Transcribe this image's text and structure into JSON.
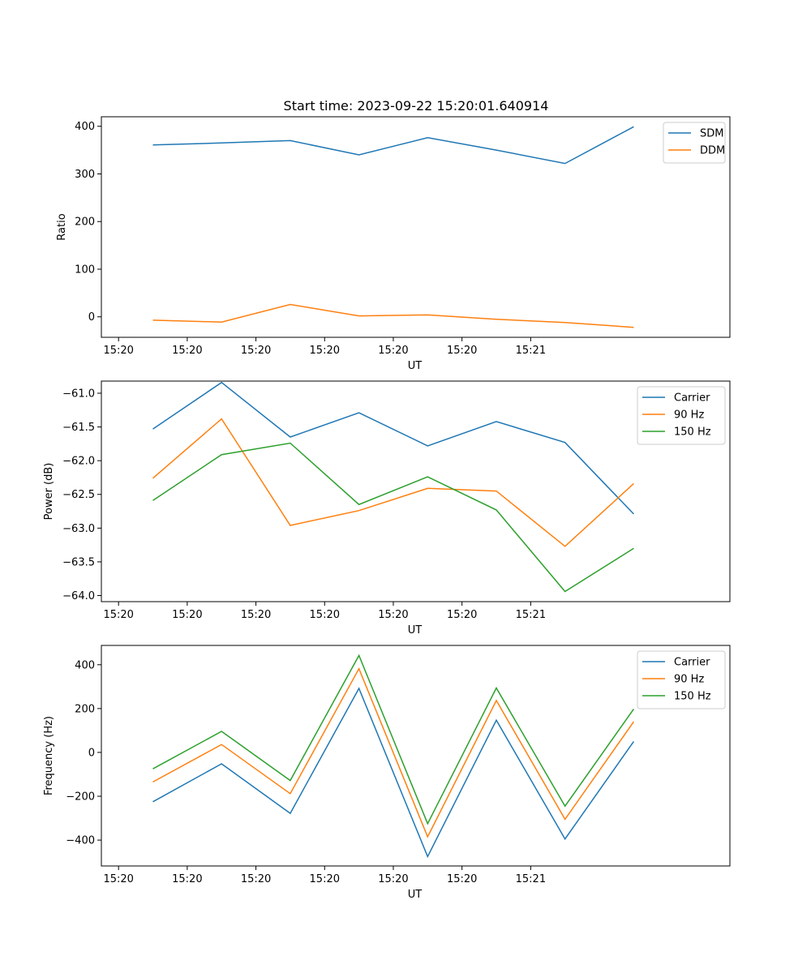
{
  "figure_title": "Start time: 2023-09-22 15:20:01.640914",
  "colors": {
    "blue": "#1f77b4",
    "orange": "#ff7f0e",
    "green": "#2ca02c"
  },
  "x_tick_labels": [
    "15:20",
    "15:20",
    "15:20",
    "15:20",
    "15:20",
    "15:20",
    "15:21"
  ],
  "chart_data": [
    {
      "type": "line",
      "title": "Start time: 2023-09-22 15:20:01.640914",
      "xlabel": "UT",
      "ylabel": "Ratio",
      "x": [
        1,
        2,
        3,
        4,
        5,
        6,
        7,
        8
      ],
      "xlim": [
        0.25,
        9.4
      ],
      "ylim": [
        -43,
        420
      ],
      "yticks": [
        0,
        100,
        200,
        300,
        400
      ],
      "legend_position": "top-right",
      "series": [
        {
          "name": "SDM",
          "color": "#1f77b4",
          "values": [
            361,
            365,
            370,
            340,
            376,
            350,
            322,
            399
          ]
        },
        {
          "name": "DDM",
          "color": "#ff7f0e",
          "values": [
            -7,
            -11,
            26,
            2,
            4,
            -5,
            -12,
            -22
          ]
        }
      ]
    },
    {
      "type": "line",
      "xlabel": "UT",
      "ylabel": "Power (dB)",
      "x": [
        1,
        2,
        3,
        4,
        5,
        6,
        7,
        8
      ],
      "xlim": [
        0.25,
        9.4
      ],
      "ylim": [
        -64.09,
        -60.82
      ],
      "yticks": [
        -61.0,
        -61.5,
        -62.0,
        -62.5,
        -63.0,
        -63.5,
        -64.0
      ],
      "legend_position": "top-right",
      "series": [
        {
          "name": "Carrier",
          "color": "#1f77b4",
          "values": [
            -61.53,
            -60.84,
            -61.65,
            -61.29,
            -61.78,
            -61.42,
            -61.73,
            -62.79
          ]
        },
        {
          "name": "90 Hz",
          "color": "#ff7f0e",
          "values": [
            -62.26,
            -61.38,
            -62.96,
            -62.74,
            -62.41,
            -62.45,
            -63.27,
            -62.34
          ]
        },
        {
          "name": "150 Hz",
          "color": "#2ca02c",
          "values": [
            -62.59,
            -61.91,
            -61.74,
            -62.65,
            -62.24,
            -62.73,
            -63.94,
            -63.3
          ]
        }
      ]
    },
    {
      "type": "line",
      "xlabel": "UT",
      "ylabel": "Frequency (Hz)",
      "x": [
        1,
        2,
        3,
        4,
        5,
        6,
        7,
        8
      ],
      "xlim": [
        0.25,
        9.4
      ],
      "ylim": [
        -518,
        488
      ],
      "yticks": [
        -400,
        -200,
        0,
        200,
        400
      ],
      "legend_position": "top-right",
      "series": [
        {
          "name": "Carrier",
          "color": "#1f77b4",
          "values": [
            -225,
            -52,
            -278,
            292,
            -475,
            147,
            -395,
            50
          ]
        },
        {
          "name": "90 Hz",
          "color": "#ff7f0e",
          "values": [
            -135,
            36,
            -188,
            382,
            -385,
            237,
            -305,
            140
          ]
        },
        {
          "name": "150 Hz",
          "color": "#2ca02c",
          "values": [
            -75,
            96,
            -128,
            442,
            -325,
            294,
            -245,
            198
          ]
        }
      ]
    }
  ]
}
